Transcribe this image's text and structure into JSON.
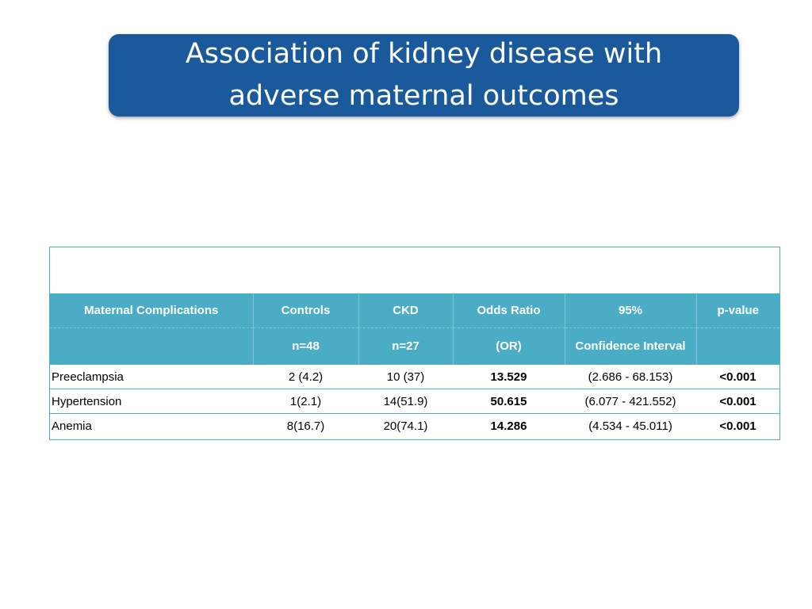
{
  "title": {
    "line1": "Association of kidney disease with",
    "line2": "adverse maternal outcomes"
  },
  "table": {
    "header_row1": [
      "Maternal Complications",
      "Controls",
      "CKD",
      "Odds Ratio",
      "95%",
      "p-value"
    ],
    "header_row2": [
      "",
      "n=48",
      "n=27",
      "(OR)",
      "Confidence Interval",
      ""
    ],
    "rows": [
      {
        "name": "Preeclampsia",
        "controls": "2 (4.2)",
        "ckd": "10 (37)",
        "or": "13.529",
        "ci": "(2.686 - 68.153)",
        "p": "<0.001"
      },
      {
        "name": "Hypertension",
        "controls": "1(2.1)",
        "ckd": "14(51.9)",
        "or": "50.615",
        "ci": "(6.077 - 421.552)",
        "p": "<0.001"
      },
      {
        "name": "Anemia",
        "controls": "8(16.7)",
        "ckd": "20(74.1)",
        "or": "14.286",
        "ci": "(4.534 - 45.011)",
        "p": "<0.001"
      }
    ]
  }
}
